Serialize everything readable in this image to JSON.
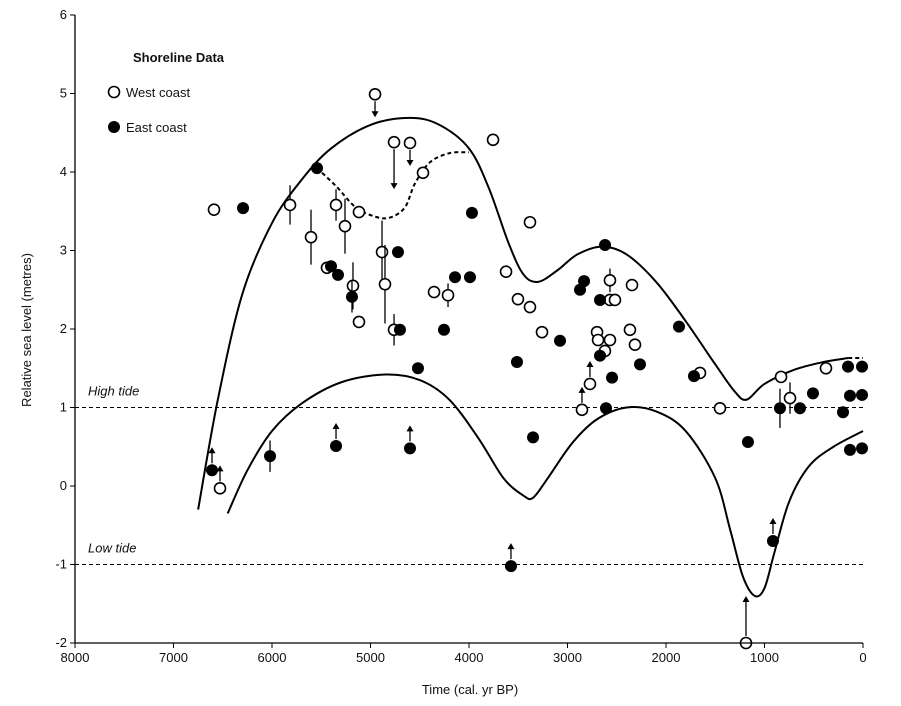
{
  "chart_data": {
    "type": "scatter",
    "title": "",
    "xlabel": "Time (cal. yr BP)",
    "ylabel": "Relative sea level (metres)",
    "xlim": [
      8000,
      0
    ],
    "ylim": [
      -2,
      6
    ],
    "xticks": [
      8000,
      7000,
      6000,
      5000,
      4000,
      3000,
      2000,
      1000,
      0
    ],
    "yticks": [
      -2,
      -1,
      0,
      1,
      2,
      3,
      4,
      5,
      6
    ],
    "grid": false,
    "legend": {
      "title": "Shoreline Data",
      "placement": "top-left",
      "entries": [
        "West coast",
        "East coast"
      ]
    },
    "reference_lines": [
      {
        "label": "High tide",
        "y": 1
      },
      {
        "label": "Low tide",
        "y": -1
      }
    ],
    "series": [
      {
        "name": "West coast",
        "marker": "open-circle",
        "points": [
          {
            "x": 6589,
            "y": 3.52
          },
          {
            "x": 6528,
            "y": -0.03,
            "arrow": "up"
          },
          {
            "x": 5817,
            "y": 3.58,
            "err": 0.25
          },
          {
            "x": 5604,
            "y": 3.17,
            "err": 0.35
          },
          {
            "x": 5442,
            "y": 2.78
          },
          {
            "x": 5350,
            "y": 3.58,
            "err": 0.2
          },
          {
            "x": 5259,
            "y": 3.31,
            "err": 0.35
          },
          {
            "x": 5178,
            "y": 2.55,
            "err": 0.3
          },
          {
            "x": 5117,
            "y": 3.49
          },
          {
            "x": 5117,
            "y": 2.09
          },
          {
            "x": 4954,
            "y": 4.99,
            "arrow": "down"
          },
          {
            "x": 4883,
            "y": 2.98,
            "err": 0.4
          },
          {
            "x": 4853,
            "y": 2.57,
            "err": 0.5
          },
          {
            "x": 4761,
            "y": 4.38,
            "arrow": "down-long"
          },
          {
            "x": 4761,
            "y": 1.99,
            "err": 0.2
          },
          {
            "x": 4599,
            "y": 4.37,
            "arrow": "down"
          },
          {
            "x": 4467,
            "y": 3.99
          },
          {
            "x": 4355,
            "y": 2.47
          },
          {
            "x": 4213,
            "y": 2.43,
            "err": 0.15
          },
          {
            "x": 3756,
            "y": 4.41
          },
          {
            "x": 3624,
            "y": 2.73
          },
          {
            "x": 3503,
            "y": 2.38
          },
          {
            "x": 3381,
            "y": 2.28
          },
          {
            "x": 3381,
            "y": 3.36
          },
          {
            "x": 3259,
            "y": 1.96
          },
          {
            "x": 2853,
            "y": 0.97,
            "arrow": "up"
          },
          {
            "x": 2772,
            "y": 1.3,
            "arrow": "up"
          },
          {
            "x": 2700,
            "y": 1.96
          },
          {
            "x": 2690,
            "y": 1.86
          },
          {
            "x": 2620,
            "y": 1.72
          },
          {
            "x": 2569,
            "y": 2.62,
            "err": 0.15
          },
          {
            "x": 2569,
            "y": 2.37
          },
          {
            "x": 2518,
            "y": 2.37
          },
          {
            "x": 2569,
            "y": 1.86
          },
          {
            "x": 2366,
            "y": 1.99
          },
          {
            "x": 2345,
            "y": 2.56
          },
          {
            "x": 2315,
            "y": 1.8
          },
          {
            "x": 1655,
            "y": 1.44
          },
          {
            "x": 1452,
            "y": 0.99
          },
          {
            "x": 832,
            "y": 1.39
          },
          {
            "x": 741,
            "y": 1.12,
            "err": 0.2
          },
          {
            "x": 376,
            "y": 1.5
          },
          {
            "x": 1188,
            "y": -2.0,
            "arrow": "up-long"
          }
        ]
      },
      {
        "name": "East coast",
        "marker": "filled-circle",
        "points": [
          {
            "x": 6609,
            "y": 0.2,
            "arrow": "up"
          },
          {
            "x": 6294,
            "y": 3.54
          },
          {
            "x": 6020,
            "y": 0.38,
            "err": 0.2
          },
          {
            "x": 5543,
            "y": 4.05
          },
          {
            "x": 5401,
            "y": 2.8
          },
          {
            "x": 5330,
            "y": 2.69
          },
          {
            "x": 5350,
            "y": 0.51,
            "arrow": "up"
          },
          {
            "x": 5188,
            "y": 2.41,
            "err": 0.2
          },
          {
            "x": 4721,
            "y": 2.98
          },
          {
            "x": 4701,
            "y": 1.99
          },
          {
            "x": 4599,
            "y": 0.48,
            "arrow": "up"
          },
          {
            "x": 4518,
            "y": 1.5
          },
          {
            "x": 4254,
            "y": 1.99
          },
          {
            "x": 4142,
            "y": 2.66
          },
          {
            "x": 3990,
            "y": 2.66
          },
          {
            "x": 3970,
            "y": 3.48
          },
          {
            "x": 3513,
            "y": 1.58
          },
          {
            "x": 3350,
            "y": 0.62
          },
          {
            "x": 3574,
            "y": -1.02,
            "arrow": "up"
          },
          {
            "x": 3076,
            "y": 1.85
          },
          {
            "x": 2873,
            "y": 2.5
          },
          {
            "x": 2832,
            "y": 2.61
          },
          {
            "x": 2670,
            "y": 2.37
          },
          {
            "x": 2619,
            "y": 3.07
          },
          {
            "x": 2670,
            "y": 1.66
          },
          {
            "x": 2548,
            "y": 1.38
          },
          {
            "x": 2609,
            "y": 0.99
          },
          {
            "x": 2264,
            "y": 1.55
          },
          {
            "x": 1868,
            "y": 2.03
          },
          {
            "x": 1716,
            "y": 1.4
          },
          {
            "x": 1168,
            "y": 0.56
          },
          {
            "x": 843,
            "y": 0.99,
            "err": 0.25
          },
          {
            "x": 640,
            "y": 0.99
          },
          {
            "x": 508,
            "y": 1.18
          },
          {
            "x": 914,
            "y": -0.7,
            "arrow": "up"
          },
          {
            "x": 203,
            "y": 0.94
          },
          {
            "x": 152,
            "y": 1.52
          },
          {
            "x": 10,
            "y": 1.52
          },
          {
            "x": 132,
            "y": 1.15
          },
          {
            "x": 10,
            "y": 1.16
          },
          {
            "x": 132,
            "y": 0.46
          },
          {
            "x": 10,
            "y": 0.48
          }
        ]
      }
    ],
    "curves": [
      {
        "name": "upper envelope",
        "style": "solid",
        "points": [
          [
            6750,
            -0.3
          ],
          [
            6550,
            1.1
          ],
          [
            6300,
            2.45
          ],
          [
            6000,
            3.35
          ],
          [
            5700,
            3.9
          ],
          [
            5400,
            4.3
          ],
          [
            5000,
            4.6
          ],
          [
            4600,
            4.69
          ],
          [
            4300,
            4.6
          ],
          [
            4000,
            4.3
          ],
          [
            3800,
            3.8
          ],
          [
            3600,
            3.1
          ],
          [
            3450,
            2.7
          ],
          [
            3300,
            2.6
          ],
          [
            3100,
            2.75
          ],
          [
            2900,
            2.95
          ],
          [
            2650,
            3.05
          ],
          [
            2400,
            2.95
          ],
          [
            2100,
            2.6
          ],
          [
            1800,
            2.1
          ],
          [
            1500,
            1.55
          ],
          [
            1300,
            1.2
          ],
          [
            1180,
            1.1
          ],
          [
            1000,
            1.3
          ],
          [
            700,
            1.48
          ],
          [
            400,
            1.58
          ],
          [
            150,
            1.63
          ]
        ]
      },
      {
        "name": "upper envelope tail",
        "style": "dashed",
        "points": [
          [
            150,
            1.63
          ],
          [
            0,
            1.63
          ]
        ]
      },
      {
        "name": "alternative upper",
        "style": "dashed",
        "points": [
          [
            5543,
            4.05
          ],
          [
            5350,
            3.82
          ],
          [
            5150,
            3.55
          ],
          [
            4950,
            3.43
          ],
          [
            4800,
            3.42
          ],
          [
            4650,
            3.55
          ],
          [
            4550,
            3.85
          ],
          [
            4400,
            4.12
          ],
          [
            4200,
            4.24
          ],
          [
            4000,
            4.25
          ]
        ]
      },
      {
        "name": "lower envelope",
        "style": "solid",
        "points": [
          [
            6450,
            -0.35
          ],
          [
            6250,
            0.2
          ],
          [
            6000,
            0.7
          ],
          [
            5700,
            1.05
          ],
          [
            5300,
            1.32
          ],
          [
            4850,
            1.42
          ],
          [
            4500,
            1.35
          ],
          [
            4200,
            1.1
          ],
          [
            3900,
            0.6
          ],
          [
            3650,
            0.1
          ],
          [
            3450,
            -0.12
          ],
          [
            3350,
            -0.15
          ],
          [
            3200,
            0.1
          ],
          [
            2950,
            0.55
          ],
          [
            2700,
            0.85
          ],
          [
            2400,
            1.0
          ],
          [
            2100,
            0.95
          ],
          [
            1800,
            0.7
          ],
          [
            1500,
            0.1
          ],
          [
            1350,
            -0.55
          ],
          [
            1220,
            -1.15
          ],
          [
            1100,
            -1.4
          ],
          [
            1000,
            -1.3
          ],
          [
            900,
            -0.85
          ],
          [
            750,
            -0.2
          ],
          [
            550,
            0.25
          ],
          [
            300,
            0.5
          ],
          [
            0,
            0.7
          ]
        ]
      }
    ]
  }
}
